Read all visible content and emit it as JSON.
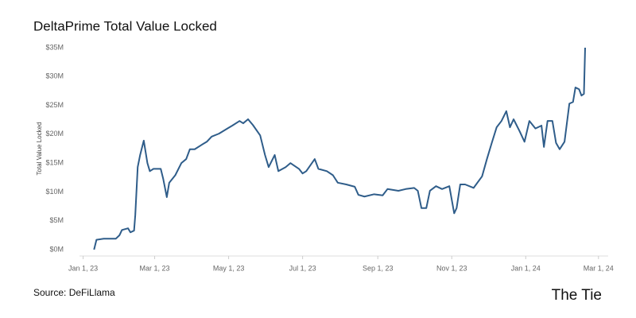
{
  "chart_data": {
    "type": "line",
    "title": "DeltaPrime Total Value Locked",
    "y_label": "Total Value Locked",
    "source": "Source: DeFiLlama",
    "brand": "The Tie",
    "color": "#2f5d8a",
    "x": [
      "2023-01-10",
      "2023-01-12",
      "2023-01-18",
      "2023-01-28",
      "2023-01-31",
      "2023-02-02",
      "2023-02-07",
      "2023-02-09",
      "2023-02-12",
      "2023-02-13",
      "2023-02-15",
      "2023-02-17",
      "2023-02-20",
      "2023-02-23",
      "2023-02-25",
      "2023-02-28",
      "2023-03-04",
      "2023-03-06",
      "2023-03-08",
      "2023-03-11",
      "2023-03-13",
      "2023-03-18",
      "2023-03-23",
      "2023-03-27",
      "2023-03-30",
      "2023-04-03",
      "2023-04-09",
      "2023-04-13",
      "2023-04-17",
      "2023-04-23",
      "2023-04-30",
      "2023-05-04",
      "2023-05-10",
      "2023-05-13",
      "2023-05-17",
      "2023-05-21",
      "2023-05-27",
      "2023-05-31",
      "2023-06-03",
      "2023-06-08",
      "2023-06-11",
      "2023-06-17",
      "2023-06-21",
      "2023-06-28",
      "2023-07-01",
      "2023-07-04",
      "2023-07-11",
      "2023-07-14",
      "2023-07-21",
      "2023-07-26",
      "2023-07-30",
      "2023-08-06",
      "2023-08-13",
      "2023-08-16",
      "2023-08-21",
      "2023-08-29",
      "2023-09-05",
      "2023-09-09",
      "2023-09-18",
      "2023-09-24",
      "2023-10-01",
      "2023-10-04",
      "2023-10-07",
      "2023-10-11",
      "2023-10-14",
      "2023-10-19",
      "2023-10-24",
      "2023-10-30",
      "2023-11-03",
      "2023-11-05",
      "2023-11-08",
      "2023-11-12",
      "2023-11-19",
      "2023-11-26",
      "2023-11-30",
      "2023-12-04",
      "2023-12-08",
      "2023-12-12",
      "2023-12-16",
      "2023-12-19",
      "2023-12-22",
      "2023-12-27",
      "2023-12-31",
      "2024-01-04",
      "2024-01-09",
      "2024-01-14",
      "2024-01-16",
      "2024-01-19",
      "2024-01-23",
      "2024-01-26",
      "2024-01-29",
      "2024-02-02",
      "2024-02-06",
      "2024-02-09",
      "2024-02-11",
      "2024-02-14",
      "2024-02-16",
      "2024-02-18",
      "2024-02-19"
    ],
    "values": [
      0,
      1.7,
      1.9,
      1.9,
      2.5,
      3.4,
      3.7,
      3.0,
      3.3,
      6,
      14.3,
      16.4,
      18.9,
      15,
      13.6,
      14,
      14,
      14,
      12.3,
      9.1,
      11.6,
      12.9,
      15,
      15.7,
      17.4,
      17.4,
      18.2,
      18.7,
      19.6,
      20.1,
      21,
      21.5,
      22.3,
      21.9,
      22.6,
      21.6,
      19.8,
      16.4,
      14.3,
      16.4,
      13.6,
      14.3,
      15,
      14,
      13.2,
      13.6,
      15.7,
      14,
      13.6,
      12.9,
      11.6,
      11.3,
      10.9,
      9.5,
      9.2,
      9.6,
      9.4,
      10.5,
      10.2,
      10.5,
      10.7,
      10.2,
      7.2,
      7.2,
      10.2,
      11,
      10.5,
      11,
      6.3,
      7.2,
      11.3,
      11.3,
      10.7,
      12.7,
      15.7,
      18.5,
      21.2,
      22.3,
      24,
      21.2,
      22.6,
      20.5,
      18.7,
      22.3,
      21,
      21.5,
      17.8,
      22.3,
      22.3,
      18.5,
      17.4,
      18.7,
      25.3,
      25.6,
      28.1,
      27.8,
      26.7,
      27,
      35
    ],
    "xlim": [
      "2022-12-29",
      "2024-03-09"
    ],
    "xticks": [
      {
        "value": "2023-01-01",
        "label": "Jan 1, 23"
      },
      {
        "value": "2023-03-01",
        "label": "Mar 1, 23"
      },
      {
        "value": "2023-05-01",
        "label": "May 1, 23"
      },
      {
        "value": "2023-07-01",
        "label": "Jul 1, 23"
      },
      {
        "value": "2023-09-01",
        "label": "Sep 1, 23"
      },
      {
        "value": "2023-11-01",
        "label": "Nov 1, 23"
      },
      {
        "value": "2024-01-01",
        "label": "Jan 1, 24"
      },
      {
        "value": "2024-03-01",
        "label": "Mar 1, 24"
      }
    ],
    "ylim": [
      0,
      35
    ],
    "yticks": [
      {
        "value": 0,
        "label": "$0M"
      },
      {
        "value": 5,
        "label": "$5M"
      },
      {
        "value": 10,
        "label": "$10M"
      },
      {
        "value": 15,
        "label": "$15M"
      },
      {
        "value": 20,
        "label": "$20M"
      },
      {
        "value": 25,
        "label": "$25M"
      },
      {
        "value": 30,
        "label": "$30M"
      },
      {
        "value": 35,
        "label": "$35M"
      }
    ]
  }
}
